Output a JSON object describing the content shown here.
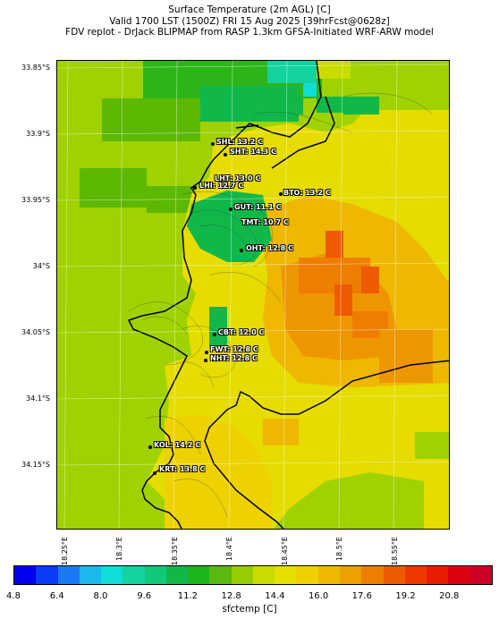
{
  "title": {
    "line1": "Surface Temperature (2m AGL) [C]",
    "line2": "Valid 1700 LST (1500Z) FRI 15 Aug 2025 [39hrFcst@0628z]",
    "line3": "FDV replot - DrJack BLIPMAP from RASP 1.3km GFSA-Initiated WRF-ARW model"
  },
  "lat_labels": [
    "33.85°S",
    "33.9°S",
    "33.95°S",
    "34°S",
    "34.05°S",
    "34.1°S",
    "34.15°S"
  ],
  "lon_labels": [
    "18.25°E",
    "18.3°E",
    "18.35°E",
    "18.4°E",
    "18.45°E",
    "18.5°E",
    "18.55°E"
  ],
  "stations": [
    {
      "label": "SHL: 13.2 C"
    },
    {
      "label": "SHT: 14.3 C"
    },
    {
      "label": "LHT: 13.0 C"
    },
    {
      "label": "LHI: 12.7 C"
    },
    {
      "label": "BTO: 13.2 C"
    },
    {
      "label": "GUT: 11.1 C"
    },
    {
      "label": "TMT: 10.7 C"
    },
    {
      "label": "OHT: 12.8 C"
    },
    {
      "label": "CBT: 12.0 C"
    },
    {
      "label": "FWT: 12.8 C"
    },
    {
      "label": "NHT: 12.8 C"
    },
    {
      "label": "KOL: 14.2 C"
    },
    {
      "label": "KRT: 13.8 C"
    }
  ],
  "colorbar": {
    "label": "sfctemp [C]",
    "ticks": [
      "4.8",
      "6.4",
      "8.0",
      "9.6",
      "11.2",
      "12.8",
      "14.4",
      "16.0",
      "17.6",
      "19.2",
      "20.8"
    ],
    "colors": [
      "#0000ee",
      "#0a3cf5",
      "#1a78f2",
      "#1ab8ee",
      "#10dcd8",
      "#12d2a0",
      "#10c878",
      "#10b84a",
      "#1eb41e",
      "#5ab80e",
      "#96cc00",
      "#c8dc00",
      "#e6e000",
      "#eed200",
      "#eeb800",
      "#eea000",
      "#ee7e00",
      "#ee5a00",
      "#ee3800",
      "#e81c00",
      "#dd0010",
      "#cc0028"
    ]
  },
  "colors": {
    "sea_green": "#9fd200",
    "land_yellow": "#e6dc00",
    "coast": "#000000"
  }
}
